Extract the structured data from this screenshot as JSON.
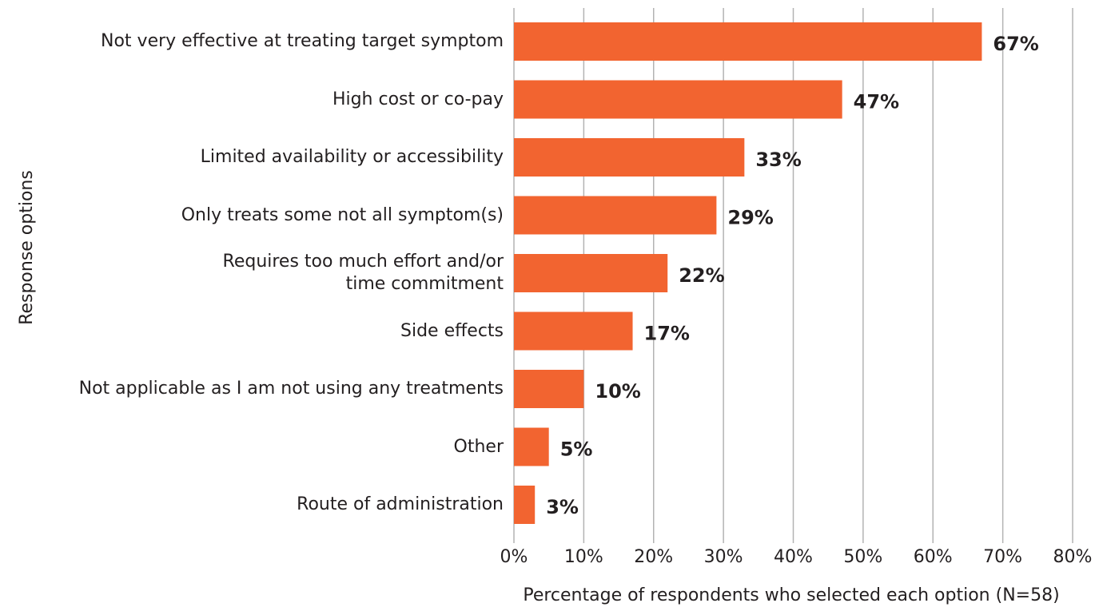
{
  "chart_data": {
    "type": "bar",
    "orientation": "horizontal",
    "xlabel": "Percentage of respondents who selected each option (N=58)",
    "ylabel": "Response options",
    "categories": [
      "Not very effective at treating target symptom",
      "High cost or co-pay",
      "Limited availability or accessibility",
      "Only treats some not all symptom(s)",
      "Requires too much effort and/or\ntime commitment",
      "Side effects",
      "Not applicable as I am not using any treatments",
      "Other",
      "Route of administration"
    ],
    "values": [
      67,
      47,
      33,
      29,
      22,
      17,
      10,
      5,
      3
    ],
    "value_labels": [
      "67%",
      "47%",
      "33%",
      "29%",
      "22%",
      "17%",
      "10%",
      "5%",
      "3%"
    ],
    "color": "#f26430",
    "xlim": [
      0,
      80
    ],
    "xticks": [
      {
        "value": 0,
        "label": "0%"
      },
      {
        "value": 10,
        "label": "10%"
      },
      {
        "value": 20,
        "label": "20%"
      },
      {
        "value": 30,
        "label": "30%"
      },
      {
        "value": 40,
        "label": "40%"
      },
      {
        "value": 50,
        "label": "50%"
      },
      {
        "value": 60,
        "label": "60%"
      },
      {
        "value": 70,
        "label": "70%"
      },
      {
        "value": 80,
        "label": "80%"
      }
    ],
    "grid": true
  }
}
